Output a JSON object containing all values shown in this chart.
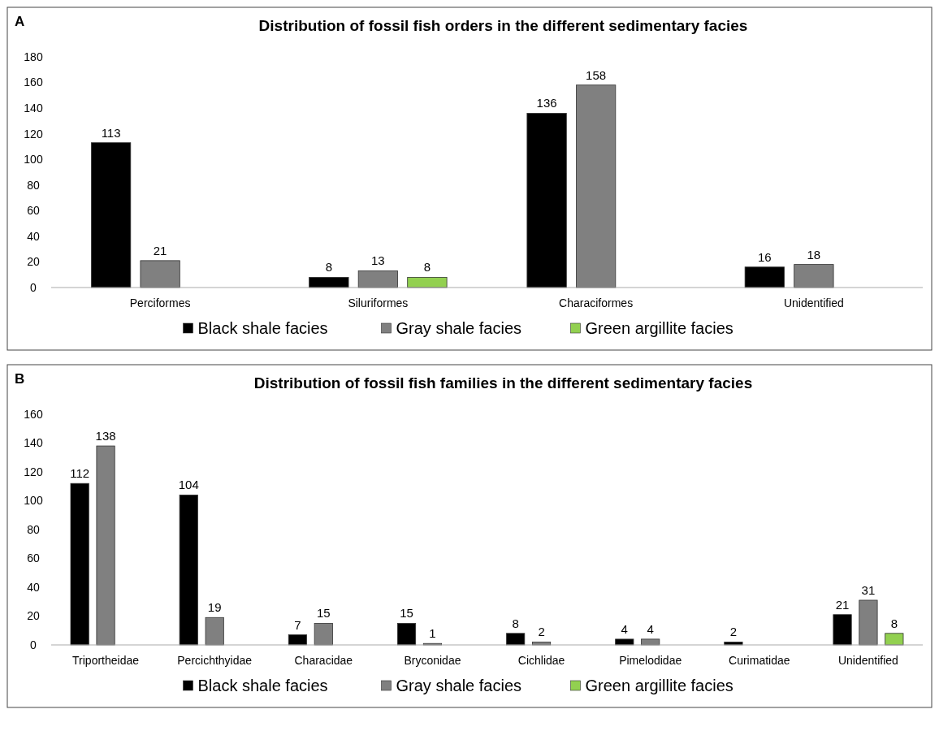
{
  "chart_data": [
    {
      "type": "bar",
      "title": "Distribution of fossil fish orders in the different sedimentary facies",
      "annotations": [
        "A"
      ],
      "categories": [
        "Perciformes",
        "Siluriformes",
        "Characiformes",
        "Unidentified"
      ],
      "series": [
        {
          "name": "Black shale facies",
          "color": "#000000",
          "values": [
            113,
            8,
            136,
            16
          ]
        },
        {
          "name": "Gray shale facies",
          "color": "#808080",
          "values": [
            21,
            13,
            158,
            18
          ]
        },
        {
          "name": "Green argillite facies",
          "color": "#92d050",
          "values": [
            null,
            8,
            null,
            null
          ]
        }
      ],
      "ylim": [
        0,
        180
      ],
      "yticks": [
        0,
        20,
        40,
        60,
        80,
        100,
        120,
        140,
        160,
        180
      ],
      "data_labels": true,
      "legend": "bottom"
    },
    {
      "type": "bar",
      "title": "Distribution of fossil fish families in the different sedimentary facies",
      "annotations": [
        "B"
      ],
      "categories": [
        "Triportheidae",
        "Percichthyidae",
        "Characidae",
        "Bryconidae",
        "Cichlidae",
        "Pimelodidae",
        "Curimatidae",
        "Unidentified"
      ],
      "series": [
        {
          "name": "Black shale facies",
          "color": "#000000",
          "values": [
            112,
            104,
            7,
            15,
            8,
            4,
            2,
            21
          ]
        },
        {
          "name": "Gray shale facies",
          "color": "#808080",
          "values": [
            138,
            19,
            15,
            1,
            2,
            4,
            null,
            31
          ]
        },
        {
          "name": "Green argillite facies",
          "color": "#92d050",
          "values": [
            null,
            null,
            null,
            null,
            null,
            null,
            null,
            8
          ]
        }
      ],
      "ylim": [
        0,
        160
      ],
      "yticks": [
        0,
        20,
        40,
        60,
        80,
        100,
        120,
        140,
        160
      ],
      "data_labels": true,
      "legend": "bottom"
    }
  ]
}
